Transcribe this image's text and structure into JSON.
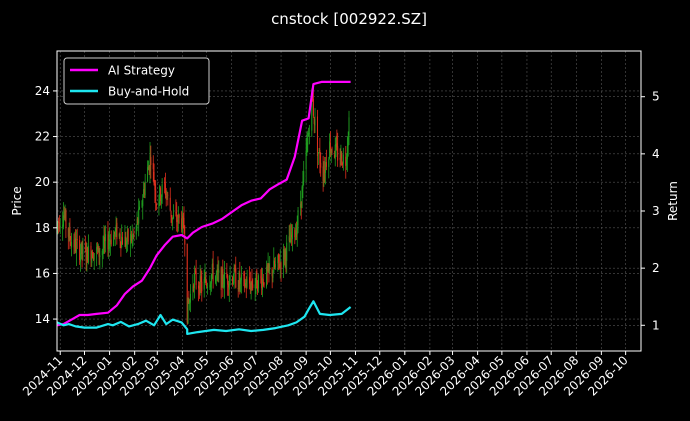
{
  "chart_data": {
    "type": "candlestick+line",
    "title": "cnstock [002922.SZ]",
    "ylabel_left": "Price",
    "ylabel_right": "Return",
    "ylim_left": [
      12.6,
      25.75
    ],
    "ylim_right": [
      0.55,
      5.8
    ],
    "left_ticks": [
      14,
      16,
      18,
      20,
      22,
      24
    ],
    "right_ticks": [
      1,
      2,
      3,
      4,
      5
    ],
    "x_range": [
      "2024-10-28",
      "2026-10-20"
    ],
    "x_ticks": [
      "2024-11",
      "2024-12",
      "2025-01",
      "2025-02",
      "2025-03",
      "2025-04",
      "2025-05",
      "2025-06",
      "2025-07",
      "2025-08",
      "2025-09",
      "2025-10",
      "2025-11",
      "2025-12",
      "2026-01",
      "2026-02",
      "2026-03",
      "2026-04",
      "2026-05",
      "2026-06",
      "2026-07",
      "2026-08",
      "2026-09",
      "2026-10"
    ],
    "grid": true,
    "legend_position": "top-left",
    "colors": {
      "up": "#1f9d1f",
      "down": "#e0301e",
      "strategy": "#ff00ff",
      "buyhold": "#1ee6f0",
      "grid": "#555555",
      "background": "#000000"
    },
    "series": [
      {
        "name": "AI Strategy",
        "axis": "right",
        "points": [
          [
            "2024-10-28",
            1.0
          ],
          [
            "2024-11-05",
            1.02
          ],
          [
            "2024-11-15",
            1.1
          ],
          [
            "2024-11-25",
            1.18
          ],
          [
            "2024-12-05",
            1.18
          ],
          [
            "2024-12-16",
            1.2
          ],
          [
            "2024-12-30",
            1.22
          ],
          [
            "2025-01-10",
            1.35
          ],
          [
            "2025-01-20",
            1.55
          ],
          [
            "2025-01-30",
            1.68
          ],
          [
            "2025-02-10",
            1.78
          ],
          [
            "2025-02-20",
            2.0
          ],
          [
            "2025-02-28",
            2.22
          ],
          [
            "2025-03-10",
            2.4
          ],
          [
            "2025-03-20",
            2.55
          ],
          [
            "2025-03-31",
            2.58
          ],
          [
            "2025-04-07",
            2.52
          ],
          [
            "2025-04-14",
            2.62
          ],
          [
            "2025-04-25",
            2.72
          ],
          [
            "2025-05-08",
            2.78
          ],
          [
            "2025-05-20",
            2.86
          ],
          [
            "2025-06-01",
            2.98
          ],
          [
            "2025-06-13",
            3.1
          ],
          [
            "2025-06-25",
            3.18
          ],
          [
            "2025-07-07",
            3.22
          ],
          [
            "2025-07-18",
            3.38
          ],
          [
            "2025-07-30",
            3.48
          ],
          [
            "2025-08-08",
            3.55
          ],
          [
            "2025-08-18",
            3.95
          ],
          [
            "2025-08-27",
            4.58
          ],
          [
            "2025-09-04",
            4.62
          ],
          [
            "2025-09-10",
            5.22
          ],
          [
            "2025-09-20",
            5.26
          ],
          [
            "2025-10-15",
            5.26
          ],
          [
            "2025-10-26",
            5.26
          ]
        ]
      },
      {
        "name": "Buy-and-Hold",
        "axis": "right",
        "points": [
          [
            "2024-10-28",
            1.05
          ],
          [
            "2024-11-05",
            1.0
          ],
          [
            "2024-11-12",
            1.02
          ],
          [
            "2024-11-20",
            0.98
          ],
          [
            "2024-12-01",
            0.96
          ],
          [
            "2024-12-16",
            0.96
          ],
          [
            "2024-12-30",
            1.02
          ],
          [
            "2025-01-05",
            1.0
          ],
          [
            "2025-01-15",
            1.06
          ],
          [
            "2025-01-25",
            0.98
          ],
          [
            "2025-02-05",
            1.02
          ],
          [
            "2025-02-15",
            1.08
          ],
          [
            "2025-02-25",
            1.0
          ],
          [
            "2025-03-05",
            1.18
          ],
          [
            "2025-03-12",
            1.02
          ],
          [
            "2025-03-20",
            1.1
          ],
          [
            "2025-03-31",
            1.05
          ],
          [
            "2025-04-07",
            0.93
          ],
          [
            "2025-04-07",
            0.85
          ],
          [
            "2025-04-20",
            0.88
          ],
          [
            "2025-05-10",
            0.92
          ],
          [
            "2025-05-25",
            0.9
          ],
          [
            "2025-06-10",
            0.93
          ],
          [
            "2025-06-25",
            0.9
          ],
          [
            "2025-07-10",
            0.92
          ],
          [
            "2025-07-25",
            0.95
          ],
          [
            "2025-08-10",
            1.0
          ],
          [
            "2025-08-20",
            1.05
          ],
          [
            "2025-08-30",
            1.15
          ],
          [
            "2025-09-04",
            1.28
          ],
          [
            "2025-09-10",
            1.42
          ],
          [
            "2025-09-18",
            1.2
          ],
          [
            "2025-09-30",
            1.18
          ],
          [
            "2025-10-15",
            1.2
          ],
          [
            "2025-10-26",
            1.32
          ]
        ]
      },
      {
        "name": "Price",
        "axis": "left",
        "kind": "candlestick",
        "anchors": [
          [
            "2024-10-28",
            18.2
          ],
          [
            "2024-11-05",
            18.6
          ],
          [
            "2024-11-12",
            17.6
          ],
          [
            "2024-11-20",
            17.2
          ],
          [
            "2024-12-01",
            16.8
          ],
          [
            "2024-12-10",
            17.0
          ],
          [
            "2024-12-20",
            16.9
          ],
          [
            "2024-12-31",
            17.5
          ],
          [
            "2025-01-10",
            17.8
          ],
          [
            "2025-01-20",
            17.4
          ],
          [
            "2025-01-31",
            17.6
          ],
          [
            "2025-02-07",
            18.6
          ],
          [
            "2025-02-14",
            20.0
          ],
          [
            "2025-02-21",
            21.2
          ],
          [
            "2025-02-28",
            19.2
          ],
          [
            "2025-03-10",
            19.8
          ],
          [
            "2025-03-20",
            18.4
          ],
          [
            "2025-03-31",
            18.3
          ],
          [
            "2025-04-04",
            17.7
          ],
          [
            "2025-04-07",
            14.3
          ],
          [
            "2025-04-15",
            15.8
          ],
          [
            "2025-04-25",
            15.4
          ],
          [
            "2025-05-08",
            16.0
          ],
          [
            "2025-05-20",
            15.7
          ],
          [
            "2025-06-01",
            15.9
          ],
          [
            "2025-06-15",
            15.5
          ],
          [
            "2025-06-30",
            15.6
          ],
          [
            "2025-07-15",
            15.9
          ],
          [
            "2025-07-31",
            16.5
          ],
          [
            "2025-08-10",
            17.2
          ],
          [
            "2025-08-20",
            18.0
          ],
          [
            "2025-08-28",
            19.8
          ],
          [
            "2025-09-04",
            22.2
          ],
          [
            "2025-09-08",
            23.8
          ],
          [
            "2025-09-15",
            21.5
          ],
          [
            "2025-09-22",
            20.4
          ],
          [
            "2025-09-30",
            21.6
          ],
          [
            "2025-10-10",
            21.2
          ],
          [
            "2025-10-20",
            21.0
          ],
          [
            "2025-10-26",
            23.6
          ]
        ]
      }
    ]
  }
}
